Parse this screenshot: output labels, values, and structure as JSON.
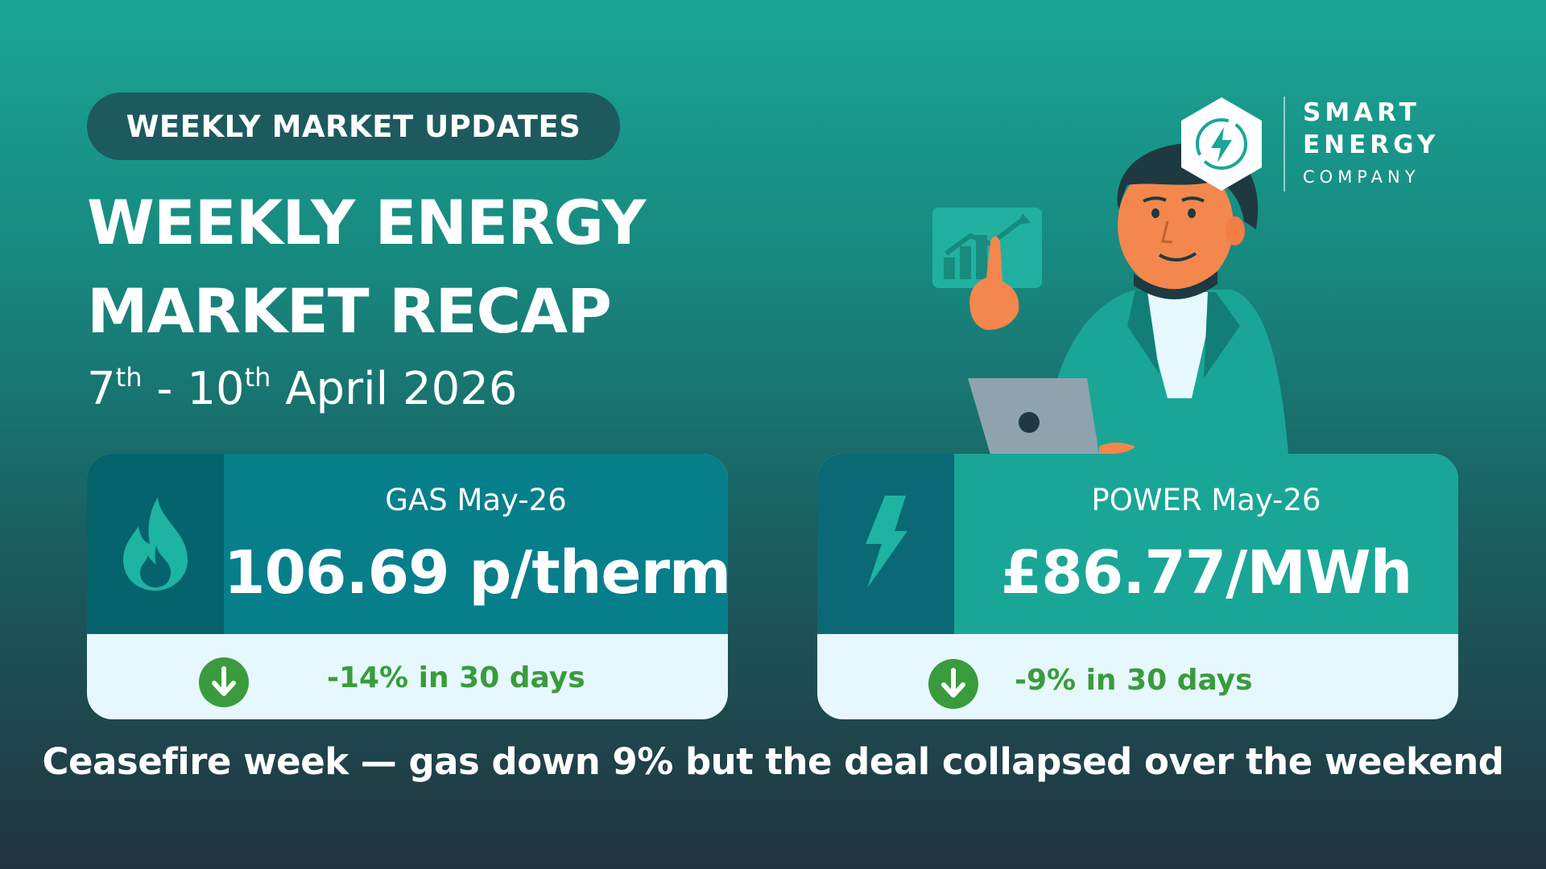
{
  "badge": "WEEKLY MARKET UPDATES",
  "title": {
    "line1": "WEEKLY ENERGY",
    "line2": "MARKET RECAP"
  },
  "dates": {
    "start_day": "7",
    "start_suffix": "th",
    "separator": "-",
    "end_day": "10",
    "end_suffix": "th",
    "month_year": "April 2026"
  },
  "logo": {
    "line1": "SMART",
    "line2": "ENERGY",
    "line3": "COMPANY",
    "icon": "lightning-hexagon-icon"
  },
  "cards": {
    "gas": {
      "label": "GAS May-26",
      "value": "106.69 p/therm",
      "change": "-14% in 30 days",
      "icon": "flame-icon",
      "trend": "down",
      "change_pct": -14
    },
    "power": {
      "label": "POWER May-26",
      "value": "£86.77/MWh",
      "change": "-9% in 30 days",
      "icon": "lightning-icon",
      "trend": "down",
      "change_pct": -9
    }
  },
  "headline": "Ceasefire week — gas down 9% but the deal collapsed over the weekend",
  "colors": {
    "background_top": "#1aa595",
    "background_bottom": "#22343f",
    "gas_card": "#077f8b",
    "power_card": "#1aa697",
    "card_footer": "#e6f8fd",
    "trend_down": "#3a9b3c"
  }
}
